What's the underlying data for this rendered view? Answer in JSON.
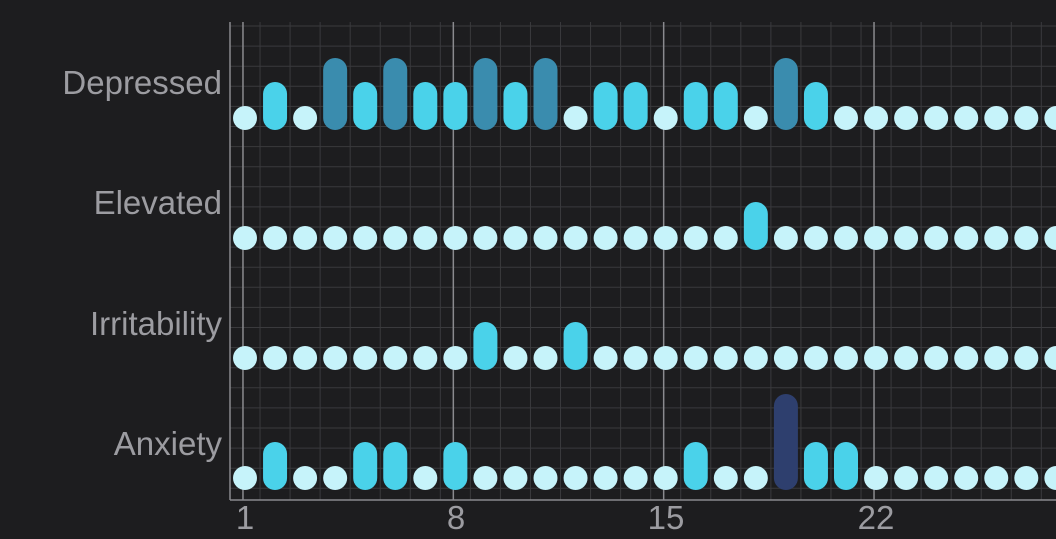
{
  "colors": {
    "background": "#1d1d1f",
    "grid_minor": "#3a3a3d",
    "grid_major": "#8a8a8e",
    "text": "#9c9ca1",
    "level_0": "#c6f3fa",
    "level_1": "#4ad2ea",
    "level_2": "#3a8cae",
    "level_3": "#2e3f6e"
  },
  "chart_data": {
    "type": "scatter",
    "title": "",
    "xlabel": "",
    "ylabel": "",
    "x_ticks": [
      "1",
      "8",
      "15",
      "22"
    ],
    "x_range": [
      1,
      28
    ],
    "levels": [
      0,
      1,
      2,
      3
    ],
    "grid": true,
    "legend": "none",
    "series": [
      {
        "name": "Depressed",
        "values": [
          0,
          1,
          0,
          2,
          1,
          2,
          1,
          1,
          2,
          1,
          2,
          0,
          1,
          1,
          0,
          1,
          1,
          0,
          2,
          1,
          0,
          0,
          0,
          0,
          0,
          0,
          0,
          0
        ]
      },
      {
        "name": "Elevated",
        "values": [
          0,
          0,
          0,
          0,
          0,
          0,
          0,
          0,
          0,
          0,
          0,
          0,
          0,
          0,
          0,
          0,
          0,
          1,
          0,
          0,
          0,
          0,
          0,
          0,
          0,
          0,
          0,
          0
        ]
      },
      {
        "name": "Irritability",
        "values": [
          0,
          0,
          0,
          0,
          0,
          0,
          0,
          0,
          1,
          0,
          0,
          1,
          0,
          0,
          0,
          0,
          0,
          0,
          0,
          0,
          0,
          0,
          0,
          0,
          0,
          0,
          0,
          0
        ]
      },
      {
        "name": "Anxiety",
        "values": [
          0,
          1,
          0,
          0,
          1,
          1,
          0,
          1,
          0,
          0,
          0,
          0,
          0,
          0,
          0,
          1,
          0,
          0,
          3,
          1,
          1,
          0,
          0,
          0,
          0,
          0,
          0,
          0
        ]
      }
    ]
  }
}
